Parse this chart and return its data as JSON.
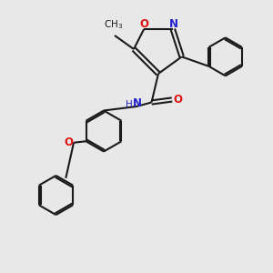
{
  "bg_color": "#e8e8e8",
  "bond_color": "#1a1a1a",
  "N_color": "#2020cc",
  "O_color": "#dd1111",
  "bond_width": 1.5,
  "font_size_atoms": 8.5,
  "figsize": [
    3.0,
    3.0
  ],
  "dpi": 100,
  "xlim": [
    0,
    10
  ],
  "ylim": [
    0,
    10
  ]
}
